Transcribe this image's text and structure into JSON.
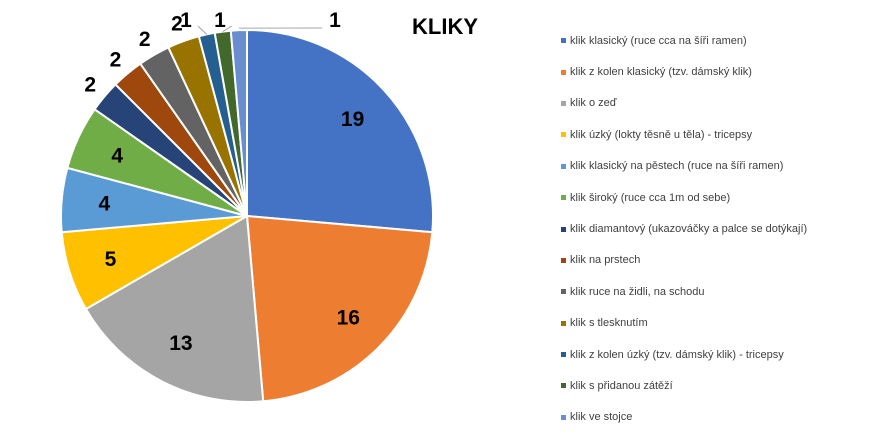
{
  "chart_data": {
    "type": "pie",
    "title": "KLIKY",
    "legend_position": "right",
    "slices": [
      {
        "label": "klik klasický (ruce cca na šíři ramen)",
        "value": 19,
        "color": "#4472C4"
      },
      {
        "label": "klik z kolen klasický (tzv. dámský klik)",
        "value": 16,
        "color": "#ED7D31"
      },
      {
        "label": "klik o zeď",
        "value": 13,
        "color": "#A5A5A5"
      },
      {
        "label": "klik úzký (lokty těsně u těla) - tricepsy",
        "value": 5,
        "color": "#FFC000"
      },
      {
        "label": "klik klasický na pěstech (ruce na šíři ramen)",
        "value": 4,
        "color": "#5B9BD5"
      },
      {
        "label": "klik široký (ruce cca 1m od sebe)",
        "value": 4,
        "color": "#70AD47"
      },
      {
        "label": "klik diamantový (ukazováčky a palce se dotýkají)",
        "value": 2,
        "color": "#264478"
      },
      {
        "label": "klik na prstech",
        "value": 2,
        "color": "#9E480E"
      },
      {
        "label": "klik ruce na židli, na schodu",
        "value": 2,
        "color": "#636363"
      },
      {
        "label": "klik s tlesknutím",
        "value": 2,
        "color": "#997300"
      },
      {
        "label": "klik z kolen úzký (tzv. dámský klik) - tricepsy",
        "value": 1,
        "color": "#255E91"
      },
      {
        "label": "klik s přidanou zátěží",
        "value": 1,
        "color": "#43682B"
      },
      {
        "label": "klik ve stojce",
        "value": 1,
        "color": "#698ED0"
      }
    ]
  }
}
